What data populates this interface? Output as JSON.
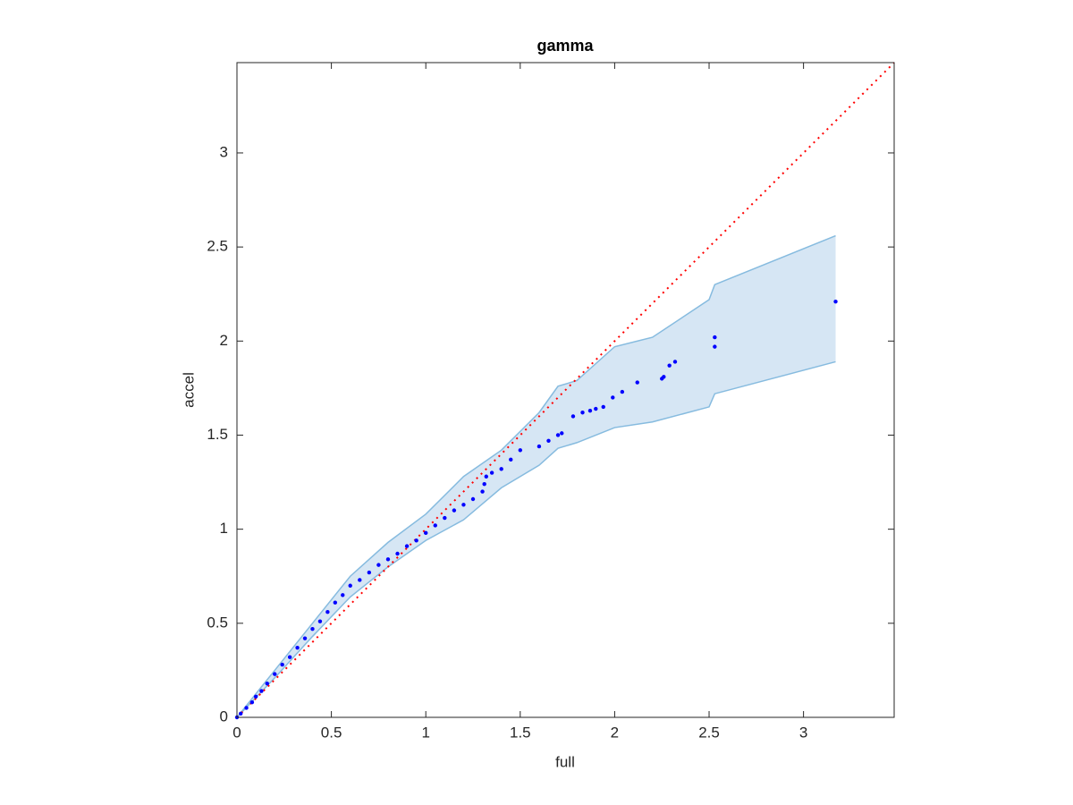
{
  "chart_data": {
    "type": "scatter",
    "title": "gamma",
    "x_label": "full",
    "y_label": "accel",
    "xlim": [
      0,
      3.48
    ],
    "ylim": [
      0,
      3.48
    ],
    "xticks": [
      0,
      0.5,
      1,
      1.5,
      2,
      2.5,
      3
    ],
    "yticks": [
      0,
      0.5,
      1,
      1.5,
      2,
      2.5,
      3
    ],
    "points": {
      "color": "#0000ff",
      "x": [
        0,
        0.02,
        0.05,
        0.08,
        0.1,
        0.13,
        0.16,
        0.2,
        0.24,
        0.28,
        0.32,
        0.36,
        0.4,
        0.44,
        0.48,
        0.52,
        0.56,
        0.6,
        0.65,
        0.7,
        0.75,
        0.8,
        0.85,
        0.9,
        0.95,
        1.0,
        1.05,
        1.1,
        1.15,
        1.2,
        1.25,
        1.3,
        1.31,
        1.32,
        1.35,
        1.4,
        1.45,
        1.5,
        1.6,
        1.65,
        1.7,
        1.72,
        1.78,
        1.83,
        1.87,
        1.9,
        1.94,
        1.99,
        2.04,
        2.12,
        2.25,
        2.26,
        2.29,
        2.32,
        2.53,
        2.53,
        3.17
      ],
      "y": [
        0,
        0.02,
        0.05,
        0.08,
        0.11,
        0.14,
        0.18,
        0.23,
        0.28,
        0.32,
        0.37,
        0.42,
        0.47,
        0.51,
        0.56,
        0.61,
        0.65,
        0.7,
        0.73,
        0.77,
        0.81,
        0.84,
        0.87,
        0.91,
        0.94,
        0.98,
        1.02,
        1.06,
        1.1,
        1.13,
        1.16,
        1.2,
        1.24,
        1.28,
        1.3,
        1.32,
        1.37,
        1.42,
        1.44,
        1.47,
        1.5,
        1.51,
        1.6,
        1.62,
        1.63,
        1.64,
        1.65,
        1.7,
        1.73,
        1.78,
        1.8,
        1.81,
        1.87,
        1.89,
        1.97,
        2.02,
        2.21
      ]
    },
    "band": {
      "color": "#d6e6f4",
      "edge_color": "#86bbdf",
      "x": [
        0,
        0.2,
        0.4,
        0.6,
        0.8,
        1.0,
        1.2,
        1.4,
        1.6,
        1.7,
        1.8,
        2.0,
        2.2,
        2.5,
        2.53,
        3.17
      ],
      "upper": [
        0,
        0.25,
        0.5,
        0.75,
        0.93,
        1.08,
        1.28,
        1.42,
        1.62,
        1.76,
        1.79,
        1.97,
        2.02,
        2.22,
        2.3,
        2.56
      ],
      "lower": [
        0,
        0.21,
        0.43,
        0.64,
        0.8,
        0.94,
        1.05,
        1.22,
        1.34,
        1.43,
        1.46,
        1.54,
        1.57,
        1.65,
        1.72,
        1.89
      ]
    },
    "reference_line": {
      "color": "#ff0000",
      "x": [
        0,
        3.48
      ],
      "y": [
        0,
        3.48
      ]
    }
  }
}
